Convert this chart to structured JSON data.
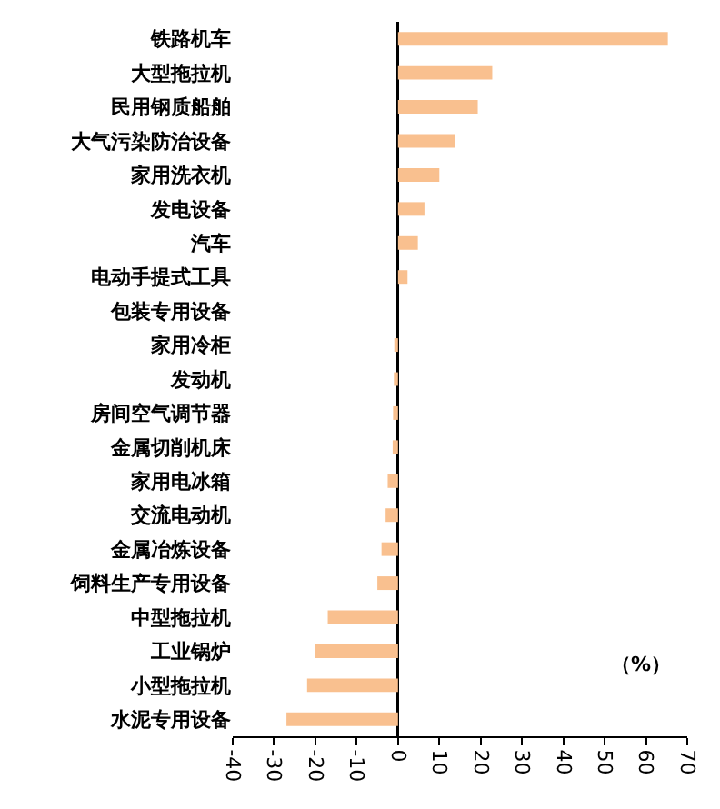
{
  "chart_data": {
    "type": "bar",
    "orientation": "horizontal",
    "categories": [
      "铁路机车",
      "大型拖拉机",
      "民用钢质船舶",
      "大气污染防治设备",
      "家用洗衣机",
      "发电设备",
      "汽车",
      "电动手提式工具",
      "包装专用设备",
      "家用冷柜",
      "发动机",
      "房间空气调节器",
      "金属切削机床",
      "家用电冰箱",
      "交流电动机",
      "金属冶炼设备",
      "饲料生产专用设备",
      "中型拖拉机",
      "工业锅炉",
      "小型拖拉机",
      "水泥专用设备"
    ],
    "values": [
      65.3,
      22.8,
      19.3,
      13.8,
      10,
      6.4,
      4.8,
      2.3,
      0,
      -0.9,
      -1,
      -1.2,
      -1.3,
      -2.5,
      -3,
      -4,
      -5,
      -17,
      -20,
      -22,
      -27
    ],
    "color": "#f9c08f",
    "xlim": [
      -40,
      70
    ],
    "xticks": [
      -40,
      -30,
      -20,
      -10,
      0,
      10,
      20,
      30,
      40,
      50,
      60,
      70
    ],
    "annotations": [
      "（%）"
    ]
  }
}
